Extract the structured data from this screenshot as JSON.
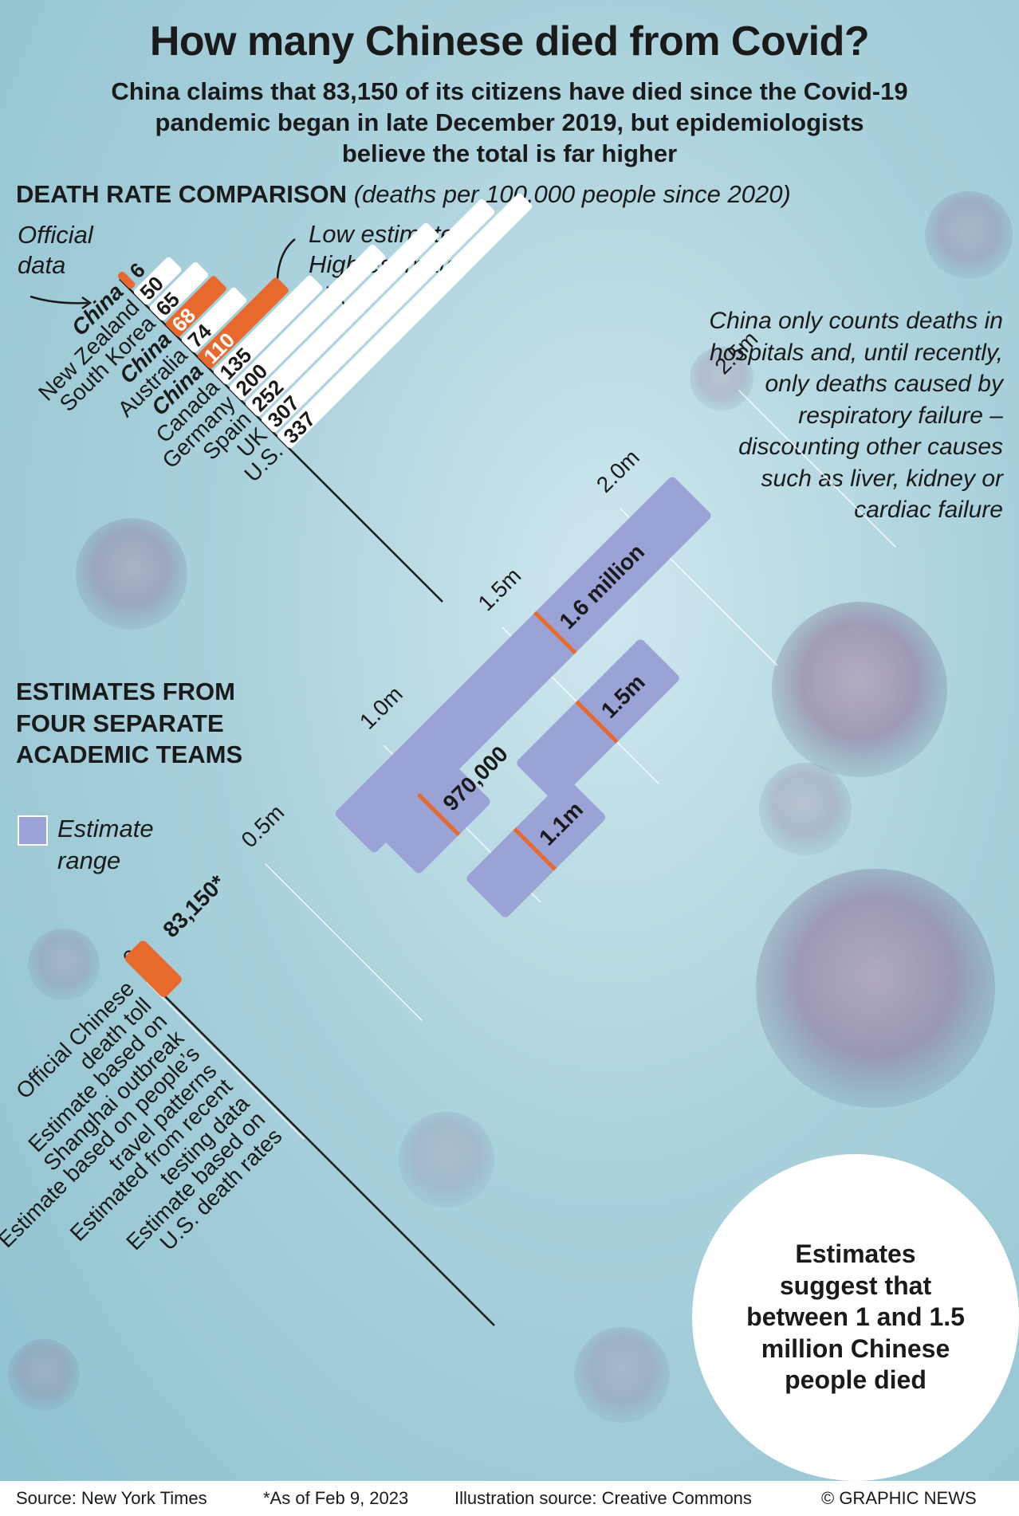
{
  "title": "How many Chinese died from Covid?",
  "subtitle": "China claims that 83,150 of its citizens have died since the Covid-19 pandemic began in late December 2019, but epidemiologists believe the total is far higher",
  "section1": {
    "heading": "DEATH RATE COMPARISON",
    "unit": "(deaths per 100,000 people since 2020)"
  },
  "legend1": {
    "official": "Official data",
    "low": "Low estimate",
    "high": "High estimate"
  },
  "note": "China only counts deaths in hospitals and, until recently, only deaths caused by respiratory failure – discounting other causes such as liver, kidney or cardiac failure",
  "section2": {
    "heading": "ESTIMATES FROM FOUR SEPARATE ACADEMIC TEAMS"
  },
  "legend2": {
    "label": "Estimate range"
  },
  "summary": "Estimates suggest that between 1 and 1.5 million Chinese people died",
  "colors": {
    "orange": "#e8692e",
    "range": "#9ba3d6",
    "bar": "#ffffff"
  },
  "chart_data": [
    {
      "type": "bar",
      "title": "DEATH RATE COMPARISON",
      "ylabel": "deaths per 100,000 people since 2020",
      "categories": [
        "China",
        "New Zealand",
        "South Korea",
        "China",
        "Australia",
        "China",
        "Canada",
        "Germany",
        "Spain",
        "UK",
        "U.S."
      ],
      "values": [
        6,
        50,
        65,
        68,
        74,
        110,
        135,
        200,
        252,
        307,
        337
      ],
      "highlight": [
        "official",
        "",
        "",
        "low",
        "",
        "high",
        "",
        "",
        "",
        "",
        ""
      ]
    },
    {
      "type": "bar",
      "title": "ESTIMATES FROM FOUR SEPARATE ACADEMIC TEAMS",
      "axis_ticks": [
        "0",
        "0.5m",
        "1.0m",
        "1.5m",
        "2.0m",
        "2.5m"
      ],
      "ylim": [
        0,
        2500000
      ],
      "categories": [
        "Official Chinese death toll",
        "Estimate based on Shanghai outbreak",
        "Estimate based on people’s travel patterns",
        "Estimated from recent testing data",
        "Estimate based on U.S. death rates"
      ],
      "official": {
        "value": 83150,
        "label": "83,150*"
      },
      "ranges": [
        {
          "low": 750000,
          "high": 2180000,
          "central": 1600000,
          "label": "1.6 million"
        },
        {
          "low": 800000,
          "high": 1110000,
          "central": 970000,
          "label": "970,000"
        },
        {
          "low": 1240000,
          "high": 1770000,
          "central": 1500000,
          "label": "1.5m"
        },
        {
          "low": 890000,
          "high": 1320000,
          "central": 1100000,
          "label": "1.1m"
        }
      ]
    }
  ],
  "footer": {
    "source": "Source: New York Times",
    "asof": "*As of Feb 9, 2023",
    "illustration": "Illustration source: Creative Commons",
    "credit": "© GRAPHIC NEWS"
  }
}
